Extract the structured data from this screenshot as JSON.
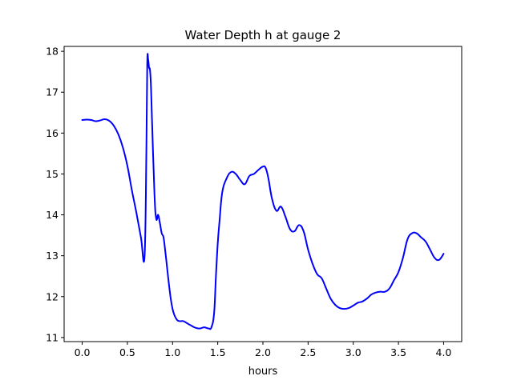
{
  "chart_data": {
    "type": "line",
    "title": "Water Depth h at gauge 2",
    "xlabel": "hours",
    "ylabel": "",
    "xlim": [
      -0.2,
      4.2
    ],
    "ylim": [
      10.9,
      18.12
    ],
    "xticks": [
      0.0,
      0.5,
      1.0,
      1.5,
      2.0,
      2.5,
      3.0,
      3.5,
      4.0
    ],
    "xtick_labels": [
      "0.0",
      "0.5",
      "1.0",
      "1.5",
      "2.0",
      "2.5",
      "3.0",
      "3.5",
      "4.0"
    ],
    "yticks": [
      11,
      12,
      13,
      14,
      15,
      16,
      17,
      18
    ],
    "ytick_labels": [
      "11",
      "12",
      "13",
      "14",
      "15",
      "16",
      "17",
      "18"
    ],
    "grid": false,
    "line_color": "#0000ff",
    "series": [
      {
        "x": [
          0.0,
          0.05,
          0.1,
          0.15,
          0.2,
          0.25,
          0.3,
          0.35,
          0.4,
          0.45,
          0.5,
          0.55,
          0.6,
          0.65,
          0.69,
          0.71,
          0.72,
          0.73,
          0.74,
          0.75,
          0.76,
          0.77,
          0.8,
          0.82,
          0.84,
          0.86,
          0.88,
          0.9,
          0.92,
          0.94,
          0.96,
          0.98,
          1.0,
          1.02,
          1.05,
          1.08,
          1.12,
          1.16,
          1.2,
          1.25,
          1.3,
          1.35,
          1.4,
          1.43,
          1.46,
          1.48,
          1.5,
          1.52,
          1.55,
          1.6,
          1.65,
          1.7,
          1.75,
          1.8,
          1.85,
          1.9,
          1.95,
          2.0,
          2.03,
          2.06,
          2.1,
          2.15,
          2.2,
          2.25,
          2.3,
          2.35,
          2.4,
          2.45,
          2.5,
          2.55,
          2.6,
          2.65,
          2.7,
          2.75,
          2.8,
          2.85,
          2.9,
          2.95,
          3.0,
          3.05,
          3.1,
          3.15,
          3.2,
          3.25,
          3.3,
          3.35,
          3.4,
          3.45,
          3.5,
          3.55,
          3.6,
          3.65,
          3.7,
          3.75,
          3.8,
          3.85,
          3.9,
          3.95,
          4.0
        ],
        "y": [
          16.32,
          16.33,
          16.32,
          16.29,
          16.31,
          16.34,
          16.3,
          16.18,
          15.97,
          15.65,
          15.2,
          14.6,
          14.05,
          13.45,
          12.98,
          15.5,
          17.7,
          17.8,
          17.6,
          17.55,
          17.2,
          16.5,
          14.5,
          13.9,
          14.0,
          13.8,
          13.55,
          13.45,
          13.1,
          12.7,
          12.3,
          11.95,
          11.7,
          11.55,
          11.43,
          11.4,
          11.4,
          11.35,
          11.3,
          11.24,
          11.22,
          11.25,
          11.22,
          11.25,
          11.6,
          12.5,
          13.3,
          13.85,
          14.55,
          14.9,
          15.05,
          15.0,
          14.85,
          14.75,
          14.95,
          15.0,
          15.1,
          15.18,
          15.15,
          14.9,
          14.4,
          14.1,
          14.2,
          13.95,
          13.65,
          13.6,
          13.75,
          13.6,
          13.15,
          12.8,
          12.55,
          12.45,
          12.2,
          11.95,
          11.8,
          11.72,
          11.7,
          11.72,
          11.78,
          11.85,
          11.88,
          11.95,
          12.05,
          12.1,
          12.12,
          12.12,
          12.2,
          12.4,
          12.6,
          12.95,
          13.4,
          13.55,
          13.55,
          13.45,
          13.35,
          13.15,
          12.95,
          12.9,
          13.05
        ]
      }
    ]
  }
}
